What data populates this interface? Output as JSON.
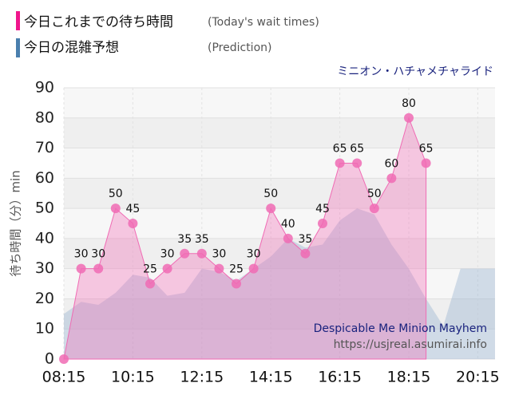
{
  "chart_data": {
    "type": "area",
    "legend": [
      {
        "label": "今日これまでの待ち時間",
        "note": "(Today's wait times)",
        "color": "#f0168c"
      },
      {
        "label": "今日の混雑予想",
        "note": "(Prediction)",
        "color": "#4a7fae"
      }
    ],
    "subtitle": "ミニオン・ハチャメチャライド",
    "y_label": "待ち時間（分）min",
    "annotation": "Despicable Me Minion Mayhem",
    "source": "https://usjreal.asumirai.info",
    "xlim": [
      "08:15",
      "20:45"
    ],
    "xticks": [
      "08:15",
      "10:15",
      "12:15",
      "14:15",
      "16:15",
      "18:15",
      "20:15"
    ],
    "ylim": [
      0,
      90
    ],
    "yticks": [
      0,
      10,
      20,
      30,
      40,
      50,
      60,
      70,
      80,
      90
    ],
    "grid": true,
    "series": [
      {
        "name": "prediction",
        "color": "#9fb8d3",
        "x": [
          "08:15",
          "08:45",
          "09:15",
          "09:45",
          "10:15",
          "10:45",
          "11:15",
          "11:45",
          "12:15",
          "12:45",
          "13:15",
          "13:45",
          "14:15",
          "14:45",
          "15:15",
          "15:45",
          "16:15",
          "16:45",
          "17:15",
          "17:45",
          "18:15",
          "18:45",
          "19:15",
          "19:45",
          "20:15",
          "20:45"
        ],
        "values": [
          15,
          19,
          18,
          22,
          28,
          27,
          21,
          22,
          30,
          29,
          26,
          30,
          34,
          40,
          37,
          38,
          46,
          50,
          48,
          38,
          30,
          20,
          11,
          30,
          30,
          30
        ]
      },
      {
        "name": "wait",
        "color": "#f06bb4",
        "x": [
          "08:15",
          "08:45",
          "09:15",
          "09:45",
          "10:15",
          "10:45",
          "11:15",
          "11:45",
          "12:15",
          "12:45",
          "13:15",
          "13:45",
          "14:15",
          "14:45",
          "15:15",
          "15:45",
          "16:15",
          "16:45",
          "17:15",
          "17:45",
          "18:15",
          "18:45"
        ],
        "values": [
          0,
          30,
          30,
          50,
          45,
          25,
          30,
          35,
          35,
          30,
          25,
          30,
          50,
          40,
          35,
          45,
          65,
          65,
          50,
          60,
          80,
          65
        ]
      }
    ]
  }
}
